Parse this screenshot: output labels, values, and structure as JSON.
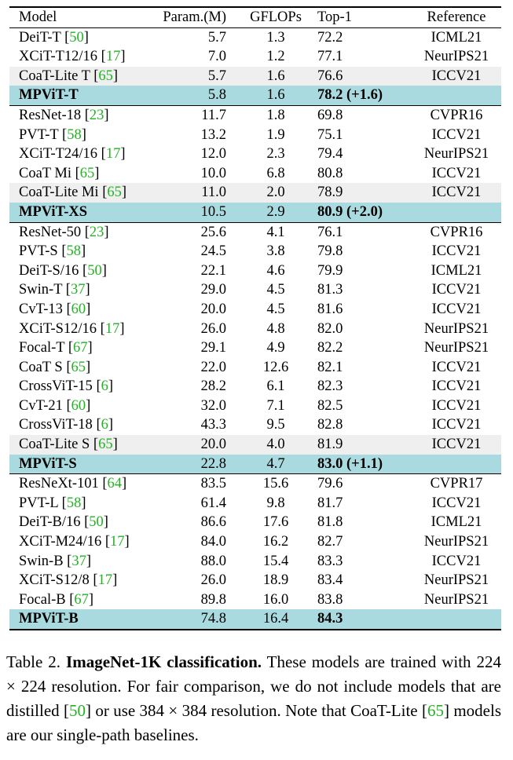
{
  "table": {
    "headers": {
      "model": "Model",
      "param": "Param.(M)",
      "gflops": "GFLOPs",
      "top1": "Top-1",
      "reference": "Reference"
    },
    "rows": [
      {
        "model": "DeiT-T",
        "cite": "50",
        "param": "5.7",
        "gflops": "1.3",
        "top1": "72.2",
        "reference": "ICML21",
        "style": "normal"
      },
      {
        "model": "XCiT-T12/16",
        "cite": "17",
        "param": "7.0",
        "gflops": "1.2",
        "top1": "77.1",
        "reference": "NeurIPS21",
        "style": "normal"
      },
      {
        "model": "CoaT-Lite T",
        "cite": "65",
        "param": "5.7",
        "gflops": "1.6",
        "top1": "76.6",
        "reference": "ICCV21",
        "style": "gray"
      },
      {
        "model": "MPViT-T",
        "cite": "",
        "param": "5.8",
        "gflops": "1.6",
        "top1": "78.2 (+1.6)",
        "reference": "",
        "style": "ours"
      },
      {
        "model": "ResNet-18",
        "cite": "23",
        "param": "11.7",
        "gflops": "1.8",
        "top1": "69.8",
        "reference": "CVPR16",
        "style": "normal"
      },
      {
        "model": "PVT-T",
        "cite": "58",
        "param": "13.2",
        "gflops": "1.9",
        "top1": "75.1",
        "reference": "ICCV21",
        "style": "normal"
      },
      {
        "model": "XCiT-T24/16",
        "cite": "17",
        "param": "12.0",
        "gflops": "2.3",
        "top1": "79.4",
        "reference": "NeurIPS21",
        "style": "normal"
      },
      {
        "model": "CoaT Mi",
        "cite": "65",
        "param": "10.0",
        "gflops": "6.8",
        "top1": "80.8",
        "reference": "ICCV21",
        "style": "normal"
      },
      {
        "model": "CoaT-Lite Mi",
        "cite": "65",
        "param": "11.0",
        "gflops": "2.0",
        "top1": "78.9",
        "reference": "ICCV21",
        "style": "gray"
      },
      {
        "model": "MPViT-XS",
        "cite": "",
        "param": "10.5",
        "gflops": "2.9",
        "top1": "80.9 (+2.0)",
        "reference": "",
        "style": "ours"
      },
      {
        "model": "ResNet-50",
        "cite": "23",
        "param": "25.6",
        "gflops": "4.1",
        "top1": "76.1",
        "reference": "CVPR16",
        "style": "normal"
      },
      {
        "model": "PVT-S",
        "cite": "58",
        "param": "24.5",
        "gflops": "3.8",
        "top1": "79.8",
        "reference": "ICCV21",
        "style": "normal"
      },
      {
        "model": "DeiT-S/16",
        "cite": "50",
        "param": "22.1",
        "gflops": "4.6",
        "top1": "79.9",
        "reference": "ICML21",
        "style": "normal"
      },
      {
        "model": "Swin-T",
        "cite": "37",
        "param": "29.0",
        "gflops": "4.5",
        "top1": "81.3",
        "reference": "ICCV21",
        "style": "normal"
      },
      {
        "model": "CvT-13",
        "cite": "60",
        "param": "20.0",
        "gflops": "4.5",
        "top1": "81.6",
        "reference": "ICCV21",
        "style": "normal"
      },
      {
        "model": "XCiT-S12/16",
        "cite": "17",
        "param": "26.0",
        "gflops": "4.8",
        "top1": "82.0",
        "reference": "NeurIPS21",
        "style": "normal"
      },
      {
        "model": "Focal-T",
        "cite": "67",
        "param": "29.1",
        "gflops": "4.9",
        "top1": "82.2",
        "reference": "NeurIPS21",
        "style": "normal"
      },
      {
        "model": "CoaT S",
        "cite": "65",
        "param": "22.0",
        "gflops": "12.6",
        "top1": "82.1",
        "reference": "ICCV21",
        "style": "normal"
      },
      {
        "model": "CrossViT-15",
        "cite": "6",
        "param": "28.2",
        "gflops": "6.1",
        "top1": "82.3",
        "reference": "ICCV21",
        "style": "normal"
      },
      {
        "model": "CvT-21",
        "cite": "60",
        "param": "32.0",
        "gflops": "7.1",
        "top1": "82.5",
        "reference": "ICCV21",
        "style": "normal"
      },
      {
        "model": "CrossViT-18",
        "cite": "6",
        "param": "43.3",
        "gflops": "9.5",
        "top1": "82.8",
        "reference": "ICCV21",
        "style": "normal"
      },
      {
        "model": "CoaT-Lite S",
        "cite": "65",
        "param": "20.0",
        "gflops": "4.0",
        "top1": "81.9",
        "reference": "ICCV21",
        "style": "gray"
      },
      {
        "model": "MPViT-S",
        "cite": "",
        "param": "22.8",
        "gflops": "4.7",
        "top1": "83.0 (+1.1)",
        "reference": "",
        "style": "ours"
      },
      {
        "model": "ResNeXt-101",
        "cite": "64",
        "param": "83.5",
        "gflops": "15.6",
        "top1": "79.6",
        "reference": "CVPR17",
        "style": "normal"
      },
      {
        "model": "PVT-L",
        "cite": "58",
        "param": "61.4",
        "gflops": "9.8",
        "top1": "81.7",
        "reference": "ICCV21",
        "style": "normal"
      },
      {
        "model": "DeiT-B/16",
        "cite": "50",
        "param": "86.6",
        "gflops": "17.6",
        "top1": "81.8",
        "reference": "ICML21",
        "style": "normal"
      },
      {
        "model": "XCiT-M24/16",
        "cite": "17",
        "param": "84.0",
        "gflops": "16.2",
        "top1": "82.7",
        "reference": "NeurIPS21",
        "style": "normal"
      },
      {
        "model": "Swin-B",
        "cite": "37",
        "param": "88.0",
        "gflops": "15.4",
        "top1": "83.3",
        "reference": "ICCV21",
        "style": "normal"
      },
      {
        "model": "XCiT-S12/8",
        "cite": "17",
        "param": "26.0",
        "gflops": "18.9",
        "top1": "83.4",
        "reference": "NeurIPS21",
        "style": "normal"
      },
      {
        "model": "Focal-B",
        "cite": "67",
        "param": "89.8",
        "gflops": "16.0",
        "top1": "83.8",
        "reference": "NeurIPS21",
        "style": "normal"
      },
      {
        "model": "MPViT-B",
        "cite": "",
        "param": "74.8",
        "gflops": "16.4",
        "top1": "84.3",
        "reference": "",
        "style": "ours"
      }
    ]
  },
  "caption": {
    "label": "Table 2.",
    "title": "ImageNet-1K classification.",
    "part1": "These models are trained with 224 × 224 resolution. For fair comparison, we do not include models that are distilled [",
    "cite1": "50",
    "part2": "] or use 384 × 384 resolution. Note that CoaT-Lite [",
    "cite2": "65",
    "part3": "] models are our single-path baselines."
  },
  "colors": {
    "ours_row": "#a9dadf",
    "baseline_row": "#efefef",
    "citation": "#22b322"
  }
}
